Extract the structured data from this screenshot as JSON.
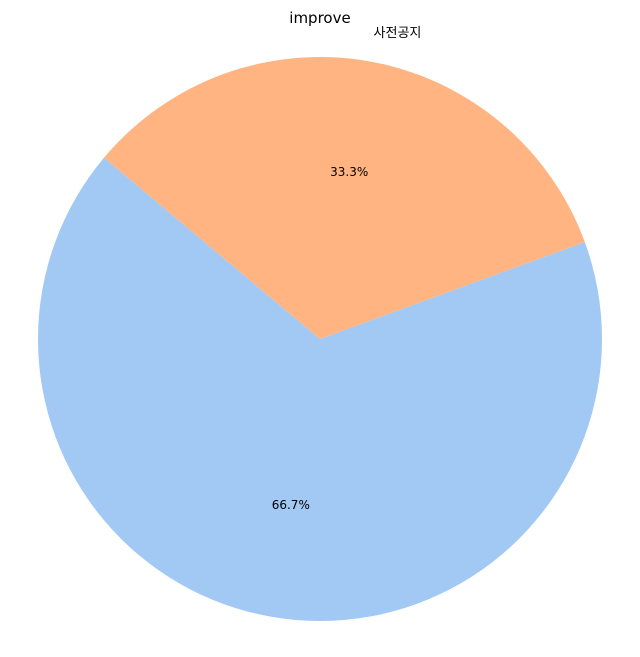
{
  "chart_data": {
    "type": "pie",
    "title": "improve",
    "categories": [
      "",
      "사전공지"
    ],
    "values": [
      66.7,
      33.3
    ],
    "labels_pct": [
      "66.7%",
      "33.3%"
    ],
    "colors": [
      "#a1c9f4",
      "#ffb482"
    ],
    "start_angle_deg": 140,
    "legend": "none"
  }
}
